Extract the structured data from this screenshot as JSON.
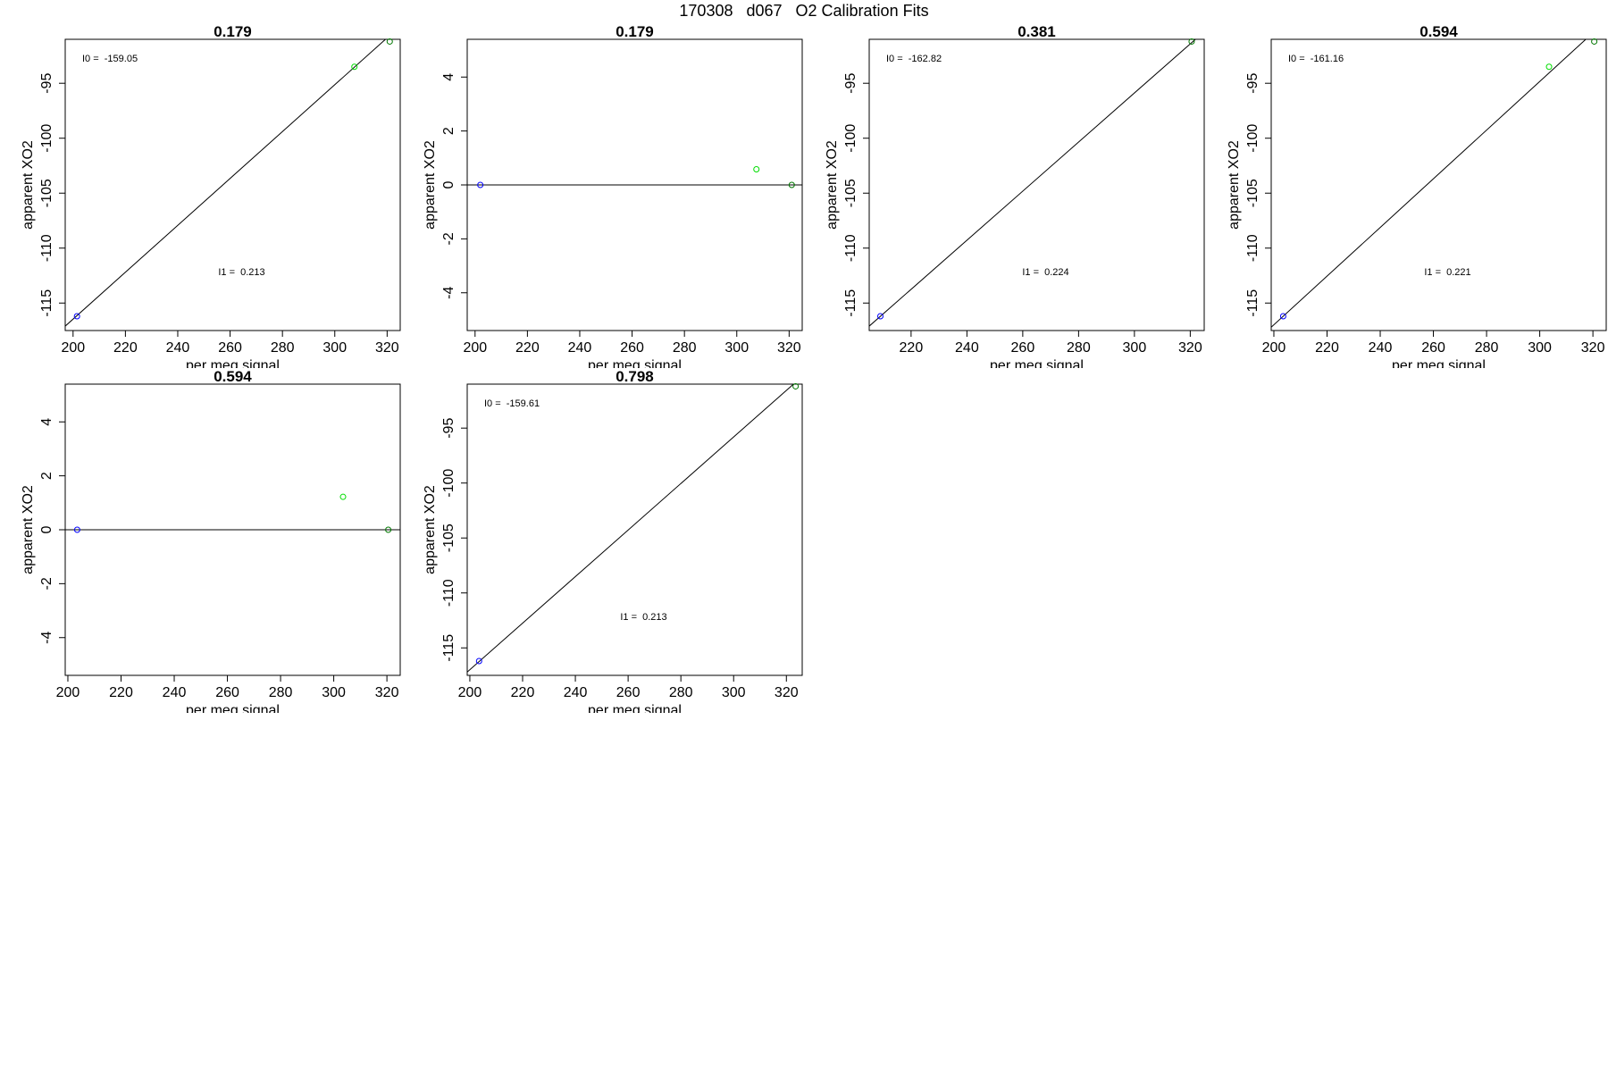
{
  "title": "170308   d067   O2 Calibration Fits",
  "colors": {
    "axis": "#000000",
    "fit_line": "#000000",
    "blue_point": "#0000ff",
    "green_point": "#00dd00",
    "dark_green_point": "#007700"
  },
  "chart_data": [
    {
      "type": "scatter",
      "title": "0.179",
      "xlabel": "per meg signal",
      "ylabel": "apparent XO2",
      "xlim": [
        197,
        325
      ],
      "ylim": [
        -117.5,
        -91
      ],
      "xticks": [
        "200",
        "220",
        "240",
        "260",
        "280",
        "300",
        "320"
      ],
      "yticks": [
        "-115",
        "-110",
        "-105",
        "-100",
        "-95"
      ],
      "xtick_values": [
        200,
        220,
        240,
        260,
        280,
        300,
        320
      ],
      "ytick_values": [
        -115,
        -110,
        -105,
        -100,
        -95
      ],
      "annotations": [
        "I0 =  -159.05",
        "I1 =  0.213"
      ],
      "points": [
        {
          "x": 201.5,
          "y": -116.2,
          "color": "blue"
        },
        {
          "x": 307.5,
          "y": -93.5,
          "color": "green"
        },
        {
          "x": 321.0,
          "y": -91.2,
          "color": "dark_green"
        }
      ],
      "fit_line": [
        [
          197,
          -117.1
        ],
        [
          325,
          -89.8
        ]
      ]
    },
    {
      "type": "scatter",
      "title": "0.179",
      "xlabel": "per meg signal",
      "ylabel": "apparent XO2",
      "xlim": [
        197,
        325
      ],
      "ylim": [
        -5.4,
        5.4
      ],
      "xticks": [
        "200",
        "220",
        "240",
        "260",
        "280",
        "300",
        "320"
      ],
      "yticks": [
        "-4",
        "-2",
        "0",
        "2",
        "4"
      ],
      "xtick_values": [
        200,
        220,
        240,
        260,
        280,
        300,
        320
      ],
      "ytick_values": [
        -4,
        -2,
        0,
        2,
        4
      ],
      "annotations": [],
      "points": [
        {
          "x": 202.0,
          "y": 0.0,
          "color": "blue"
        },
        {
          "x": 307.5,
          "y": 0.58,
          "color": "green"
        },
        {
          "x": 321.0,
          "y": 0.0,
          "color": "dark_green"
        }
      ],
      "fit_line": [
        [
          197,
          0
        ],
        [
          325,
          0
        ]
      ]
    },
    {
      "type": "scatter",
      "title": "0.381",
      "xlabel": "per meg signal",
      "ylabel": "apparent XO2",
      "xlim": [
        205,
        325
      ],
      "ylim": [
        -117.5,
        -91
      ],
      "xticks": [
        "220",
        "240",
        "260",
        "280",
        "300",
        "320"
      ],
      "yticks": [
        "-115",
        "-110",
        "-105",
        "-100",
        "-95"
      ],
      "xtick_values": [
        220,
        240,
        260,
        280,
        300,
        320
      ],
      "ytick_values": [
        -115,
        -110,
        -105,
        -100,
        -95
      ],
      "annotations": [
        "I0 =  -162.82",
        "I1 =  0.224"
      ],
      "points": [
        {
          "x": 209.0,
          "y": -116.2,
          "color": "blue"
        },
        {
          "x": 320.5,
          "y": -91.2,
          "color": "dark_green"
        }
      ],
      "fit_line": [
        [
          205,
          -117.1
        ],
        [
          325,
          -90.3
        ]
      ]
    },
    {
      "type": "scatter",
      "title": "0.594",
      "xlabel": "per meg signal",
      "ylabel": "apparent XO2",
      "xlim": [
        199,
        325
      ],
      "ylim": [
        -117.5,
        -91
      ],
      "xticks": [
        "200",
        "220",
        "240",
        "260",
        "280",
        "300",
        "320"
      ],
      "yticks": [
        "-115",
        "-110",
        "-105",
        "-100",
        "-95"
      ],
      "xtick_values": [
        200,
        220,
        240,
        260,
        280,
        300,
        320
      ],
      "ytick_values": [
        -115,
        -110,
        -105,
        -100,
        -95
      ],
      "annotations": [
        "I0 =  -161.16",
        "I1 =  0.221"
      ],
      "points": [
        {
          "x": 203.5,
          "y": -116.2,
          "color": "blue"
        },
        {
          "x": 303.5,
          "y": -93.5,
          "color": "green"
        },
        {
          "x": 320.5,
          "y": -91.2,
          "color": "dark_green"
        }
      ],
      "fit_line": [
        [
          199,
          -117.2
        ],
        [
          325,
          -89.3
        ]
      ]
    },
    {
      "type": "scatter",
      "title": "0.594",
      "xlabel": "per meg signal",
      "ylabel": "apparent XO2",
      "xlim": [
        199,
        325
      ],
      "ylim": [
        -5.4,
        5.4
      ],
      "xticks": [
        "200",
        "220",
        "240",
        "260",
        "280",
        "300",
        "320"
      ],
      "yticks": [
        "-4",
        "-2",
        "0",
        "2",
        "4"
      ],
      "xtick_values": [
        200,
        220,
        240,
        260,
        280,
        300,
        320
      ],
      "ytick_values": [
        -4,
        -2,
        0,
        2,
        4
      ],
      "annotations": [],
      "points": [
        {
          "x": 203.5,
          "y": 0.0,
          "color": "blue"
        },
        {
          "x": 303.5,
          "y": 1.22,
          "color": "green"
        },
        {
          "x": 320.5,
          "y": 0.0,
          "color": "dark_green"
        }
      ],
      "fit_line": [
        [
          199,
          0
        ],
        [
          325,
          0
        ]
      ]
    },
    {
      "type": "scatter",
      "title": "0.798",
      "xlabel": "per meg signal",
      "ylabel": "apparent XO2",
      "xlim": [
        199,
        326
      ],
      "ylim": [
        -117.5,
        -91
      ],
      "xticks": [
        "200",
        "220",
        "240",
        "260",
        "280",
        "300",
        "320"
      ],
      "yticks": [
        "-115",
        "-110",
        "-105",
        "-100",
        "-95"
      ],
      "xtick_values": [
        200,
        220,
        240,
        260,
        280,
        300,
        320
      ],
      "ytick_values": [
        -115,
        -110,
        -105,
        -100,
        -95
      ],
      "annotations": [
        "I0 =  -159.61",
        "I1 =  0.213"
      ],
      "points": [
        {
          "x": 203.5,
          "y": -116.2,
          "color": "blue"
        },
        {
          "x": 323.5,
          "y": -91.2,
          "color": "dark_green"
        }
      ],
      "fit_line": [
        [
          199,
          -117.2
        ],
        [
          326,
          -90.3
        ]
      ]
    }
  ]
}
